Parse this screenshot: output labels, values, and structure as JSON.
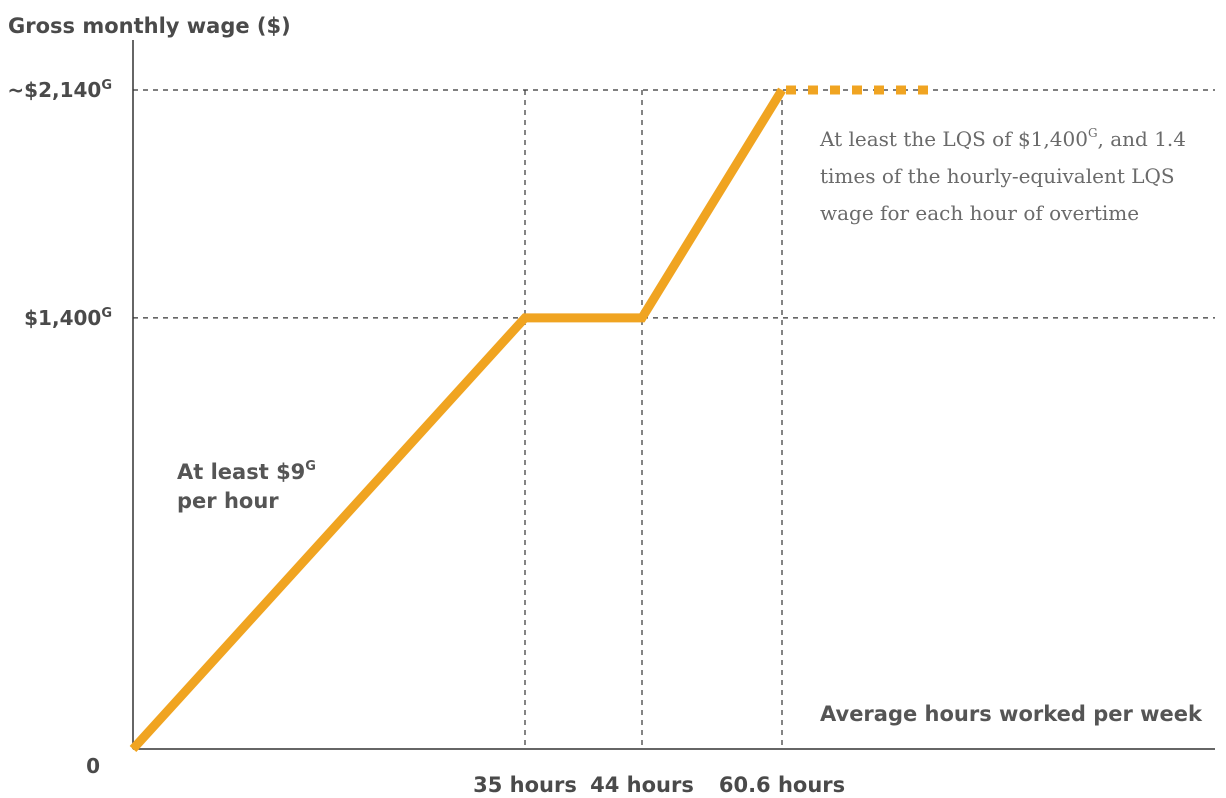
{
  "chart_data": {
    "type": "line",
    "ylabel": "Gross monthly wage ($)",
    "xlabel": "Average hours worked per week",
    "x_ticks": [
      {
        "value": 35,
        "label": "35 hours"
      },
      {
        "value": 44,
        "label": "44 hours"
      },
      {
        "value": 60.6,
        "label": "60.6 hours"
      }
    ],
    "y_ticks": [
      {
        "value": 0,
        "label": "0",
        "sup": ""
      },
      {
        "value": 1400,
        "label": "$1,400",
        "sup": "G"
      },
      {
        "value": 2140,
        "label": "~$2,140",
        "sup": "G"
      }
    ],
    "xlim": [
      0,
      100
    ],
    "ylim": [
      0,
      2140
    ],
    "series": [
      {
        "x": [
          0,
          35,
          44,
          60.6
        ],
        "y": [
          0,
          1400,
          1400,
          2140
        ],
        "color": "#f0a421"
      }
    ],
    "extension": {
      "x": [
        60.6,
        75
      ],
      "y": [
        2140,
        2140
      ],
      "style": "dotted",
      "color": "#f0a421"
    },
    "annotations": {
      "hourly_line1": "At least $9",
      "hourly_sup": "G",
      "hourly_line2": "per hour",
      "overtime_line1_pre": "At least the LQS of $1,400",
      "overtime_sup": "G",
      "overtime_line1_post": ", and 1.4",
      "overtime_line2": "times of the hourly-equivalent LQS",
      "overtime_line3": "wage for each hour of overtime"
    }
  }
}
